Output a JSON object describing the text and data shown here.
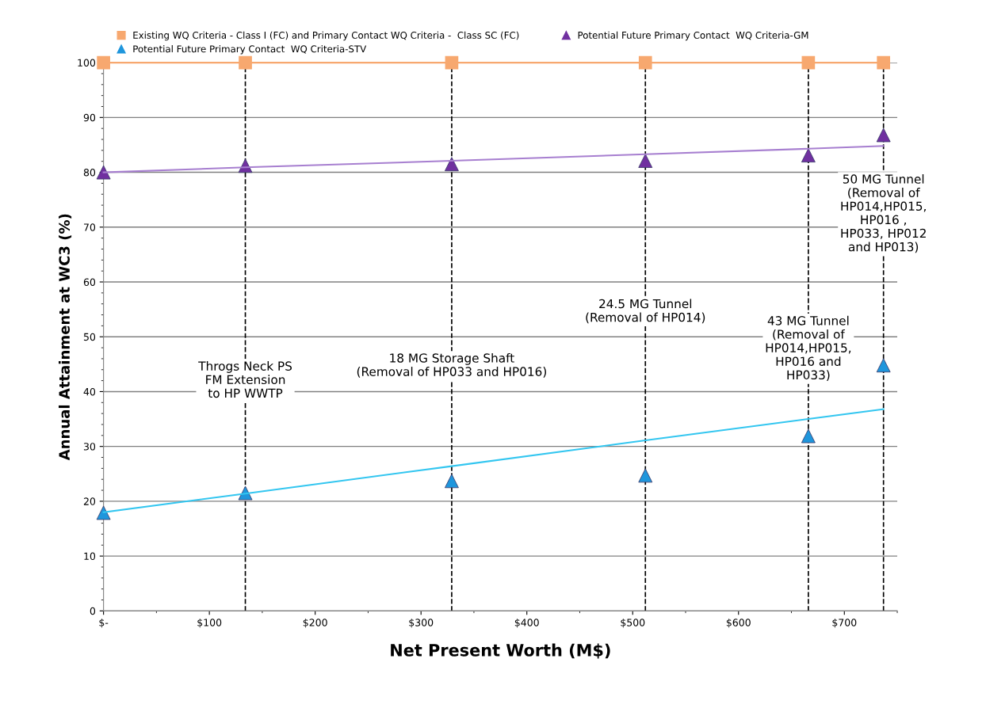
{
  "chart_data": {
    "type": "line",
    "xlabel": "Net Present Worth (M$)",
    "ylabel": "Annual Attainment at WC3 (%)",
    "x": [
      0,
      134,
      329,
      512,
      666,
      737
    ],
    "series": [
      {
        "name": "Existing WQ Criteria - Class I (FC) and Primary Contact WQ Criteria -  Class SC (FC)",
        "color": "#f7a86f",
        "values": [
          100,
          100,
          100,
          100,
          100,
          100
        ],
        "marker": "square"
      },
      {
        "name": "Potential Future Primary Contact  WQ Criteria-GM",
        "color": "#7030a0",
        "type": "scatter",
        "values": [
          80,
          81.2,
          81.5,
          82.1,
          83.1,
          86.8
        ],
        "marker": "triangle"
      },
      {
        "name": "Potential Future Primary Contact  WQ Criteria-STV",
        "color": "#1f96dc",
        "type": "scatter",
        "values": [
          17.9,
          21.5,
          23.7,
          24.7,
          31.9,
          44.8
        ],
        "marker": "triangle"
      },
      {
        "color": "#a77fd0",
        "values": [
          80,
          80.9,
          82.1,
          83.3,
          84.3,
          84.8
        ],
        "marker": "none"
      },
      {
        "color": "#33c6f0",
        "values": [
          18,
          21.4,
          26.4,
          31.1,
          35.0,
          36.8
        ],
        "marker": "none"
      }
    ],
    "xlim": [
      0,
      750
    ],
    "xticks": [
      {
        "value": 0,
        "label": "$-"
      },
      {
        "value": 100,
        "label": "$100"
      },
      {
        "value": 200,
        "label": "$200"
      },
      {
        "value": 300,
        "label": "$300"
      },
      {
        "value": 400,
        "label": "$400"
      },
      {
        "value": 500,
        "label": "$500"
      },
      {
        "value": 600,
        "label": "$600"
      },
      {
        "value": 700,
        "label": "$700"
      }
    ],
    "ylim": [
      0,
      100
    ],
    "yticks": [
      0,
      10,
      20,
      30,
      40,
      50,
      60,
      70,
      80,
      90,
      100
    ],
    "grid": "y",
    "legend": "top",
    "ref_lines": [
      {
        "axis": "x",
        "value": 134,
        "line_style": "dashed",
        "color": "#000000"
      },
      {
        "axis": "x",
        "value": 329,
        "line_style": "dashed",
        "color": "#000000"
      },
      {
        "axis": "x",
        "value": 512,
        "line_style": "dashed",
        "color": "#000000"
      },
      {
        "axis": "x",
        "value": 666,
        "line_style": "dashed",
        "color": "#000000"
      },
      {
        "axis": "x",
        "value": 737,
        "line_style": "dashed",
        "color": "#000000"
      }
    ],
    "annotations": [
      {
        "text": "Throgs Neck PS\nFM Extension\nto HP WWTP",
        "x": 134,
        "y": 42
      },
      {
        "text": "18 MG Storage Shaft\n(Removal of HP033 and HP016)",
        "x": 329,
        "y": 44.7
      },
      {
        "text": "24.5 MG Tunnel\n(Removal of HP014)",
        "x": 512,
        "y": 54.6
      },
      {
        "text": "43 MG Tunnel\n(Removal of\nHP014,HP015,\nHP016 and\nHP033)",
        "x": 666,
        "y": 47.8
      },
      {
        "text": "50 MG Tunnel\n(Removal of\nHP014,HP015,\nHP016 ,\nHP033, HP012\nand HP013)",
        "x": 737,
        "y": 72.4
      }
    ]
  }
}
